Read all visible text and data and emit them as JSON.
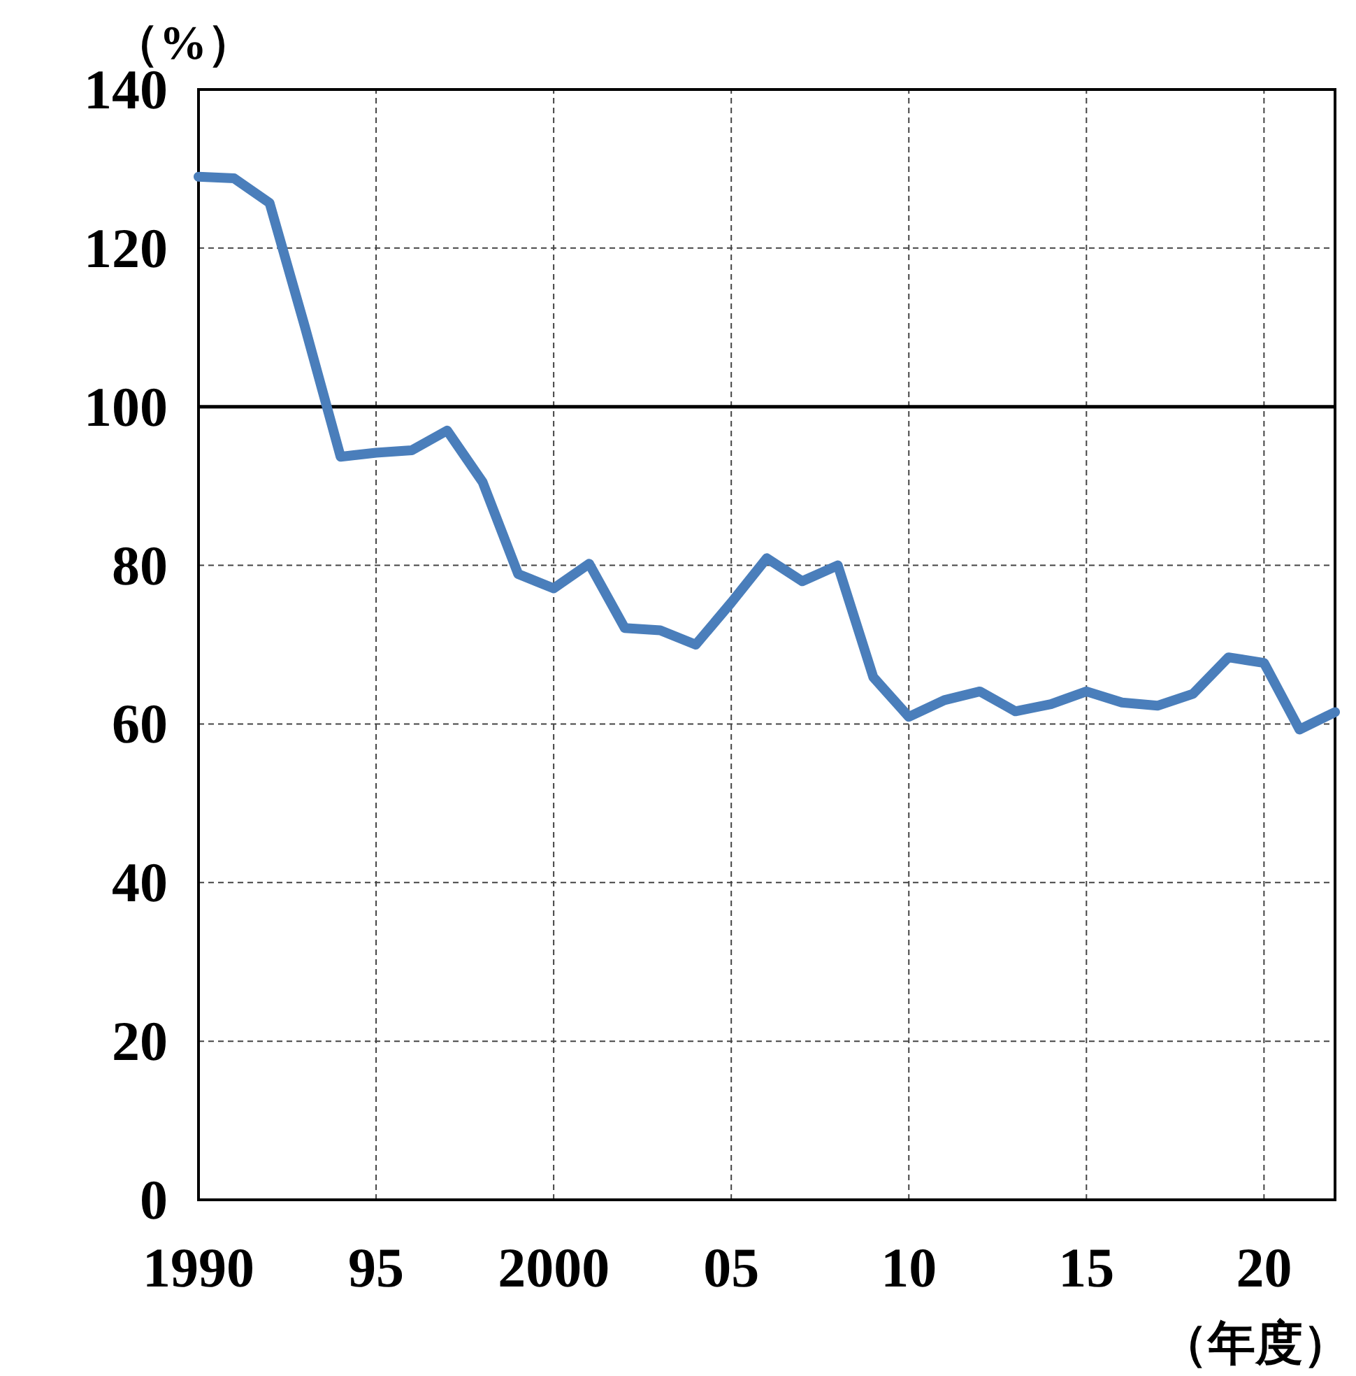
{
  "chart_data": {
    "type": "line",
    "ylabel": "（%）",
    "xlabel": "（年度）",
    "x": [
      1990,
      1991,
      1992,
      1993,
      1994,
      1995,
      1996,
      1997,
      1998,
      1999,
      2000,
      2001,
      2002,
      2003,
      2004,
      2005,
      2006,
      2007,
      2008,
      2009,
      2010,
      2011,
      2012,
      2013,
      2014,
      2015,
      2016,
      2017,
      2018,
      2019,
      2020,
      2021,
      2022
    ],
    "series": [
      {
        "color": "#4a7ebb",
        "values": [
          129,
          128.8,
          125.7,
          110,
          93.7,
          94.2,
          94.5,
          97,
          90.5,
          78.9,
          77.1,
          80.2,
          72.1,
          71.8,
          70,
          75.3,
          80.9,
          78,
          80,
          65.9,
          60.9,
          63,
          64.1,
          61.6,
          62.5,
          64.1,
          62.7,
          62.3,
          63.8,
          68.4,
          67.7,
          59.3,
          61.5
        ]
      }
    ],
    "xlim": [
      1990,
      2022
    ],
    "ylim": [
      0,
      140
    ],
    "xticks": [
      {
        "value": 1990,
        "label": "1990"
      },
      {
        "value": 1995,
        "label": "95"
      },
      {
        "value": 2000,
        "label": "2000"
      },
      {
        "value": 2005,
        "label": "05"
      },
      {
        "value": 2010,
        "label": "10"
      },
      {
        "value": 2015,
        "label": "15"
      },
      {
        "value": 2020,
        "label": "20"
      }
    ],
    "yticks": [
      0,
      20,
      40,
      60,
      80,
      100,
      120,
      140
    ],
    "grid": true,
    "line_style": "solid",
    "marker": "none",
    "ref_lines": [
      {
        "axis": "y",
        "value": 100,
        "color": "#000000",
        "line_style": "solid"
      }
    ]
  }
}
